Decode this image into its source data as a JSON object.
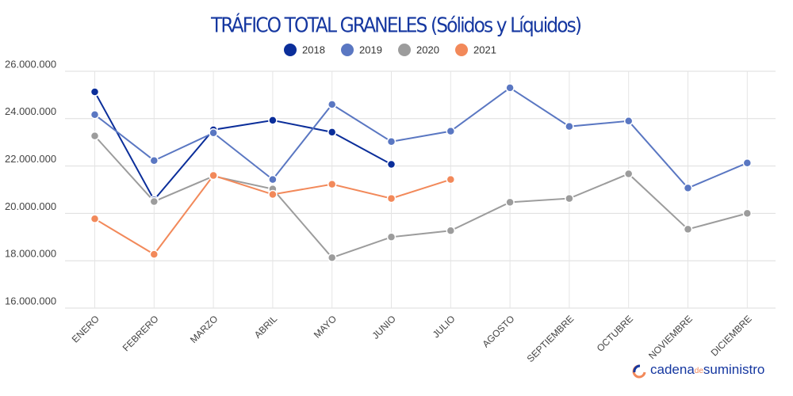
{
  "chart_data": {
    "type": "line",
    "title": "TRÁFICO TOTAL GRANELES (Sólidos y Líquidos)",
    "categories": [
      "ENERO",
      "FEBRERO",
      "MARZO",
      "ABRIL",
      "MAYO",
      "JUNIO",
      "JULIO",
      "AGOSTO",
      "SEPTIEMBRE",
      "OCTUBRE",
      "NOVIEMBRE",
      "DICIEMBRE"
    ],
    "series": [
      {
        "name": "2018",
        "color": "#0b2e9a",
        "values": [
          25130000,
          20570000,
          23530000,
          23930000,
          23430000,
          22070000,
          null,
          null,
          null,
          null,
          null,
          null
        ]
      },
      {
        "name": "2019",
        "color": "#5a77c2",
        "values": [
          24170000,
          22230000,
          23400000,
          21430000,
          24600000,
          23030000,
          23470000,
          25300000,
          23670000,
          23900000,
          21070000,
          22130000
        ]
      },
      {
        "name": "2020",
        "color": "#9c9c9c",
        "values": [
          23270000,
          20500000,
          21570000,
          21030000,
          18130000,
          19000000,
          19270000,
          20470000,
          20630000,
          21670000,
          19330000,
          20000000
        ]
      },
      {
        "name": "2021",
        "color": "#f2895a",
        "values": [
          19770000,
          18270000,
          21600000,
          20800000,
          21230000,
          20630000,
          21430000,
          null,
          null,
          null,
          null,
          null
        ]
      }
    ],
    "ylim": [
      16000000,
      26000000
    ],
    "yticks": [
      {
        "value": 16000000,
        "label": "16.000.000"
      },
      {
        "value": 18000000,
        "label": "18.000.000"
      },
      {
        "value": 20000000,
        "label": "20.000.000"
      },
      {
        "value": 22000000,
        "label": "22.000.000"
      },
      {
        "value": 24000000,
        "label": "24.000.000"
      },
      {
        "value": 26000000,
        "label": "26.000.000"
      }
    ],
    "grid": true,
    "legend": "top"
  },
  "logo": {
    "part1": "cadena",
    "part2": "de",
    "part3": "suministro"
  }
}
